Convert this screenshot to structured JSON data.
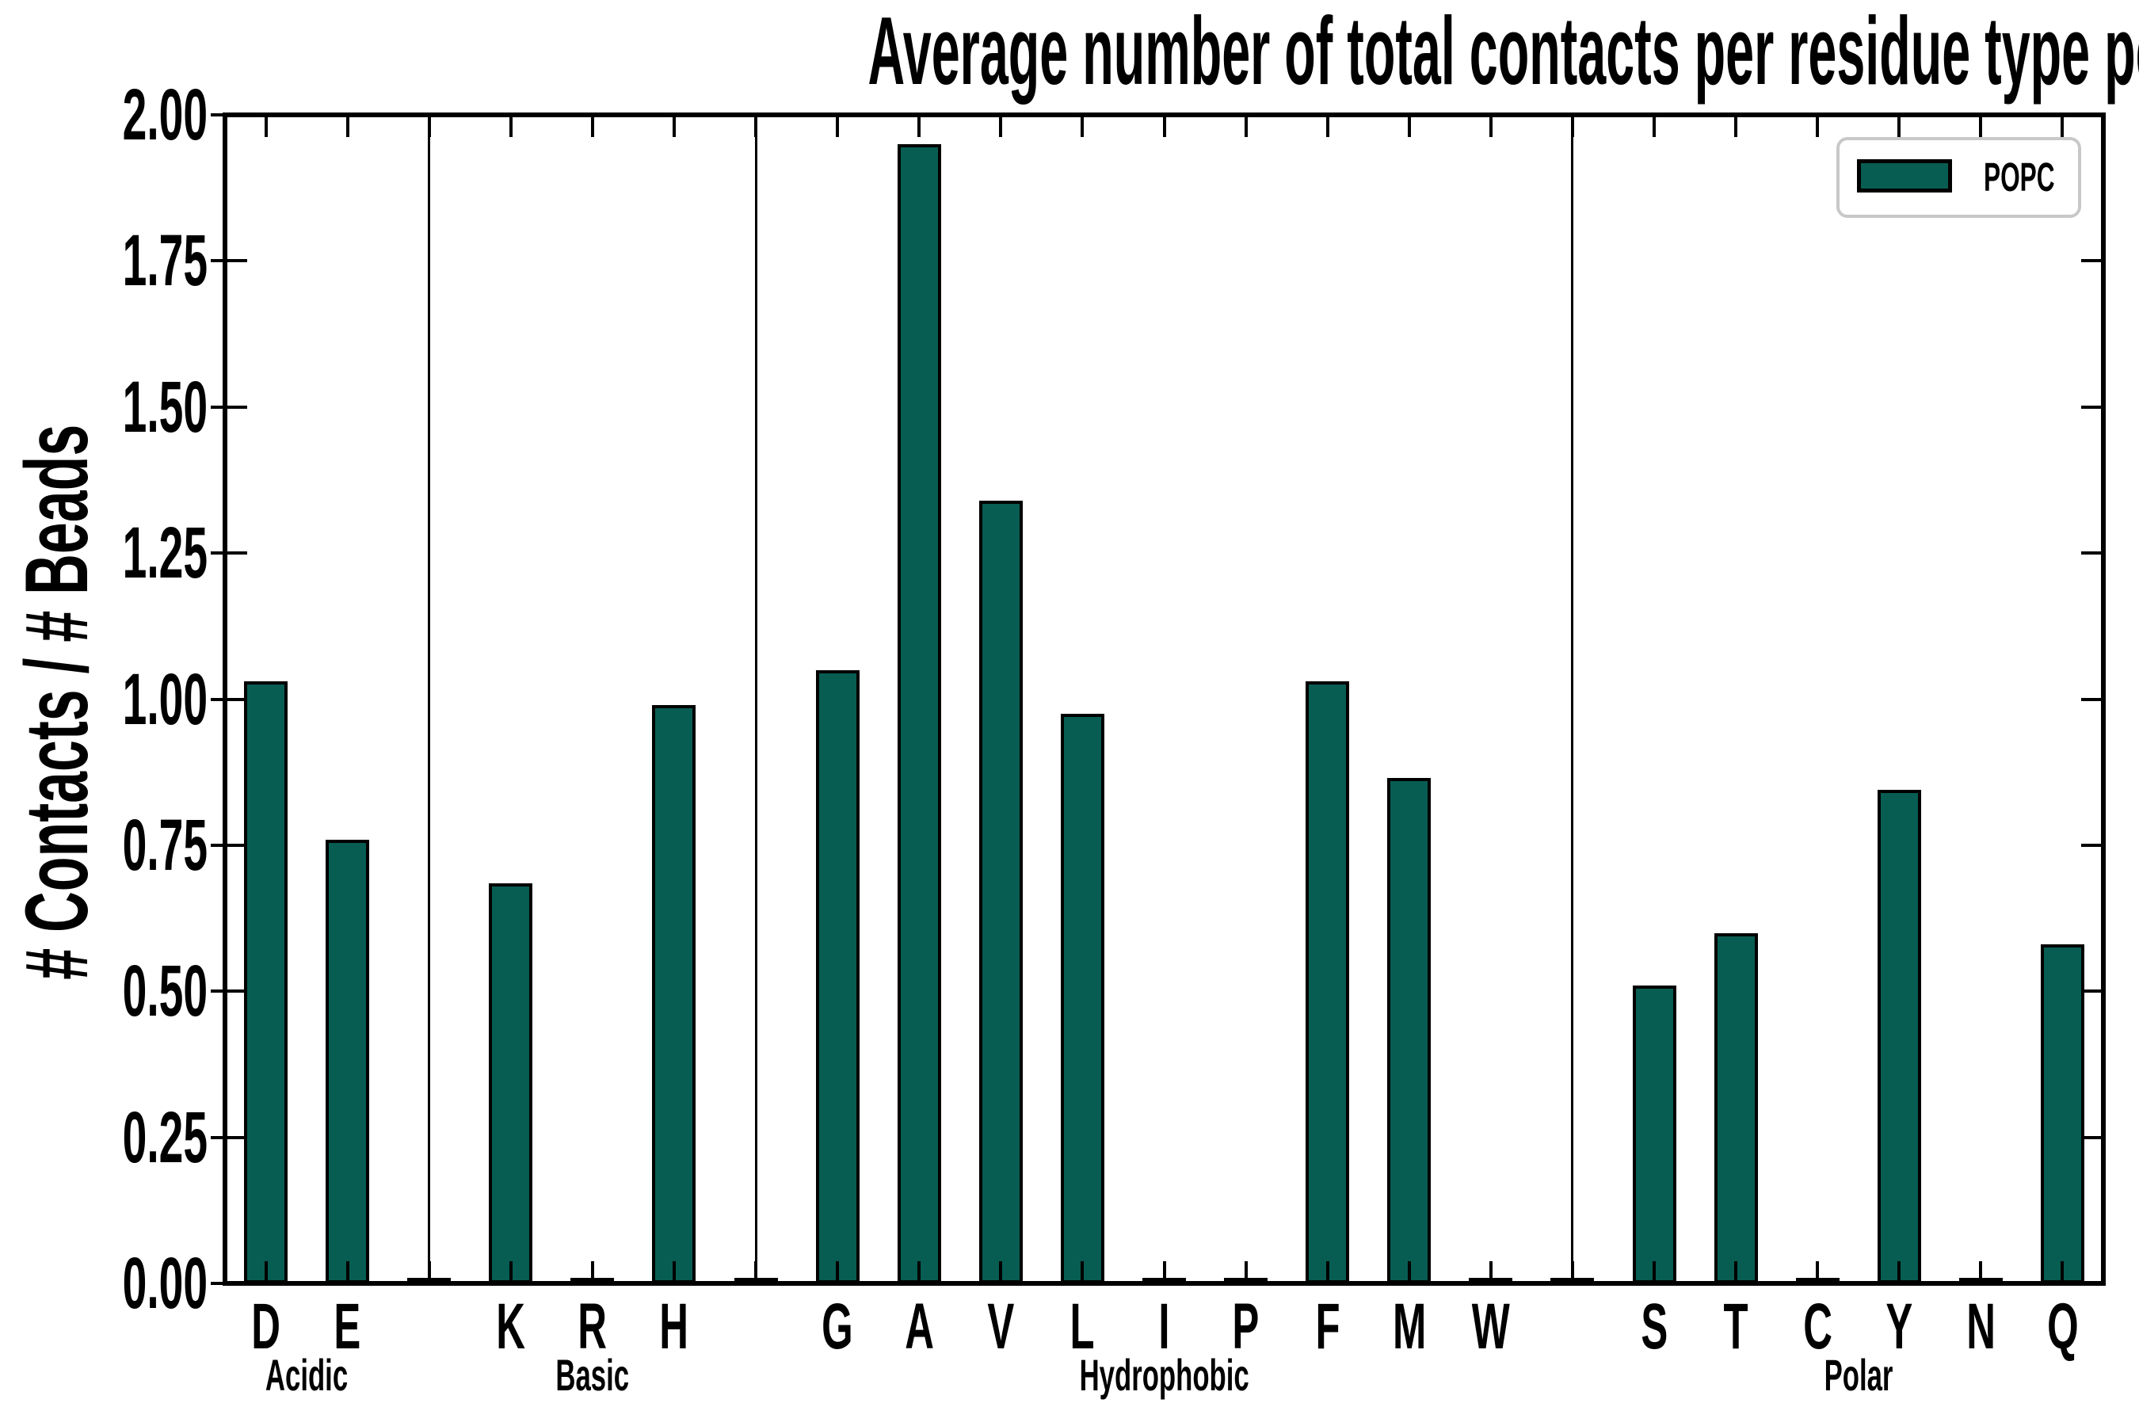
{
  "title": "Average number of total contacts per residue type per bead",
  "ylabel": "# Contacts / # Beads",
  "legend": {
    "label": "POPC"
  },
  "colors": {
    "bar_fill": "#085D52",
    "bar_edge": "#000000",
    "axis": "#000000",
    "legend_border": "#C8C8C8",
    "background": "#FFFFFF"
  },
  "chart_data": {
    "type": "bar",
    "title": "Average number of total contacts per residue type per bead",
    "xlabel": "",
    "ylabel": "# Contacts / # Beads",
    "series_name": "POPC",
    "categories": [
      "D",
      "E",
      "K",
      "R",
      "H",
      "G",
      "A",
      "V",
      "L",
      "I",
      "P",
      "F",
      "M",
      "W",
      "S",
      "T",
      "C",
      "Y",
      "N",
      "Q"
    ],
    "values": [
      1.03,
      0.76,
      0.685,
      0.005,
      0.99,
      1.05,
      1.95,
      1.34,
      0.975,
      0.005,
      0.005,
      1.03,
      0.865,
      0.005,
      0.51,
      0.6,
      0.005,
      0.845,
      0.005,
      0.58
    ],
    "groups": [
      {
        "label": "Acidic",
        "categories": [
          "D",
          "E"
        ]
      },
      {
        "label": "Basic",
        "categories": [
          "K",
          "R",
          "H"
        ]
      },
      {
        "label": "Hydrophobic",
        "categories": [
          "G",
          "A",
          "V",
          "L",
          "I",
          "P",
          "F",
          "M",
          "W"
        ]
      },
      {
        "label": "Polar",
        "categories": [
          "S",
          "T",
          "C",
          "Y",
          "N",
          "Q"
        ]
      }
    ],
    "yticks": [
      0.0,
      0.25,
      0.5,
      0.75,
      1.0,
      1.25,
      1.5,
      1.75,
      2.0
    ],
    "ytick_labels": [
      "0.00",
      "0.25",
      "0.50",
      "0.75",
      "1.00",
      "1.25",
      "1.50",
      "1.75",
      "2.00"
    ],
    "ylim": [
      0,
      2.0
    ],
    "grid": false,
    "legend_entries": [
      "POPC"
    ],
    "legend_position": "upper right",
    "group_separators": true
  }
}
